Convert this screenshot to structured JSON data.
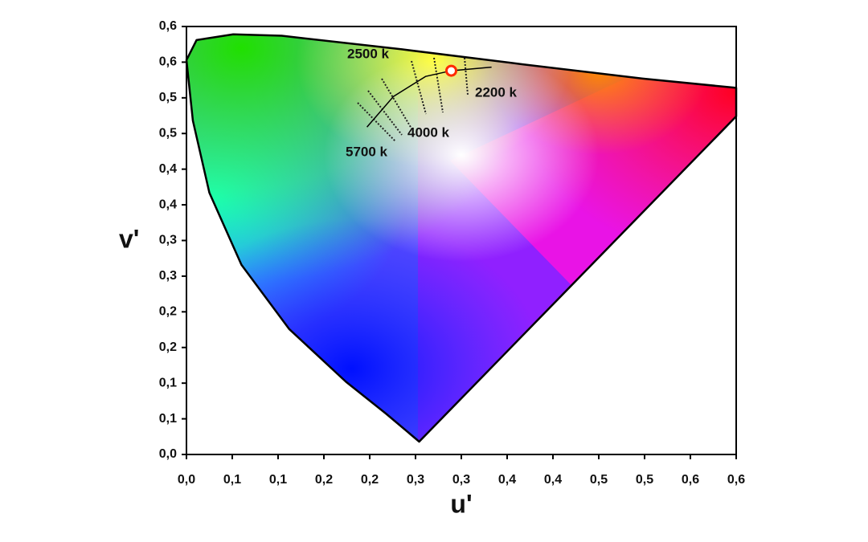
{
  "chart_data": {
    "type": "chromaticity",
    "xlabel": "u'",
    "ylabel": "v'",
    "xlim": [
      0,
      0.6
    ],
    "ylim": [
      0,
      0.6
    ],
    "xticks": [
      {
        "value": 0,
        "label": "0,0"
      },
      {
        "value": 0.05,
        "label": "0,1"
      },
      {
        "value": 0.1,
        "label": "0,1"
      },
      {
        "value": 0.15,
        "label": "0,2"
      },
      {
        "value": 0.2,
        "label": "0,2"
      },
      {
        "value": 0.25,
        "label": "0,3"
      },
      {
        "value": 0.3,
        "label": "0,3"
      },
      {
        "value": 0.35,
        "label": "0,4"
      },
      {
        "value": 0.4,
        "label": "0,4"
      },
      {
        "value": 0.45,
        "label": "0,5"
      },
      {
        "value": 0.5,
        "label": "0,5"
      },
      {
        "value": 0.55,
        "label": "0,6"
      },
      {
        "value": 0.6,
        "label": "0,6"
      }
    ],
    "yticks": [
      {
        "value": 0,
        "label": "0,0"
      },
      {
        "value": 0.05,
        "label": "0,1"
      },
      {
        "value": 0.1,
        "label": "0,1"
      },
      {
        "value": 0.15,
        "label": "0,2"
      },
      {
        "value": 0.2,
        "label": "0,2"
      },
      {
        "value": 0.25,
        "label": "0,3"
      },
      {
        "value": 0.3,
        "label": "0,3"
      },
      {
        "value": 0.35,
        "label": "0,4"
      },
      {
        "value": 0.4,
        "label": "0,4"
      },
      {
        "value": 0.45,
        "label": "0,5"
      },
      {
        "value": 0.5,
        "label": "0,5"
      },
      {
        "value": 0.55,
        "label": "0,6"
      },
      {
        "value": 0.6,
        "label": "0,6"
      }
    ],
    "locus": {
      "x": [
        0.254,
        0.218,
        0.174,
        0.112,
        0.06,
        0.025,
        0.007,
        0,
        0.011,
        0.051,
        0.104,
        0.235,
        0.367,
        0.498,
        0.6,
        0.6
      ],
      "values": [
        0.018,
        0.057,
        0.102,
        0.176,
        0.266,
        0.367,
        0.468,
        0.553,
        0.581,
        0.589,
        0.587,
        0.568,
        0.547,
        0.527,
        0.514,
        0.474
      ]
    },
    "planckian": {
      "x": [
        0.197,
        0.226,
        0.261,
        0.289,
        0.333
      ],
      "values": [
        0.459,
        0.502,
        0.53,
        0.538,
        0.543
      ]
    },
    "point": {
      "x": 0.289,
      "value": 0.538,
      "color": "#ff2a00"
    },
    "annotations": [
      "2500 k",
      "2200 k",
      "4000 k",
      "5700 k"
    ]
  }
}
